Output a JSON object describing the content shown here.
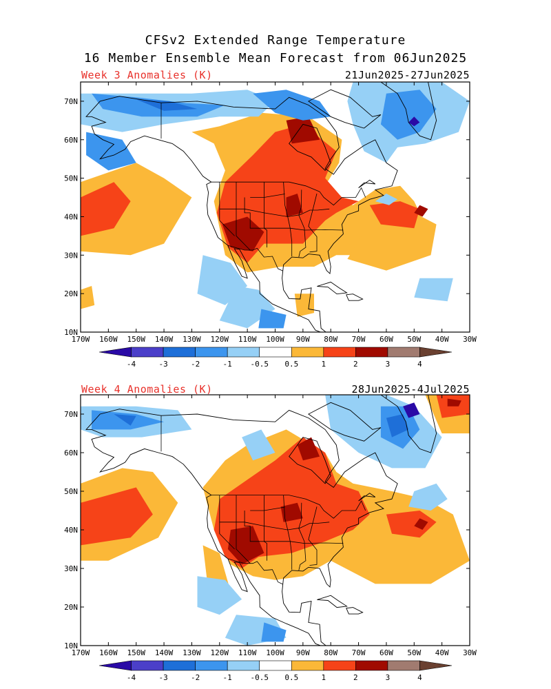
{
  "title_line1": "CFSv2 Extended Range Temperature",
  "title_line2": "16 Member Ensemble Mean Forecast from 06Jun2025",
  "panels": [
    {
      "label": "Week 3 Anomalies (K)",
      "dates": "21Jun2025-27Jun2025"
    },
    {
      "label": "Week 4 Anomalies (K)",
      "dates": "28Jun2025-4Jul2025"
    }
  ],
  "lon_labels": [
    "170W",
    "160W",
    "150W",
    "140W",
    "130W",
    "120W",
    "110W",
    "100W",
    "90W",
    "80W",
    "70W",
    "60W",
    "50W",
    "40W",
    "30W"
  ],
  "lat_labels": [
    "70N",
    "60N",
    "50N",
    "40N",
    "30N",
    "20N",
    "10N"
  ],
  "colorbar": {
    "labels": [
      "-4",
      "-3",
      "-2",
      "-1",
      "-0.5",
      "0.5",
      "1",
      "2",
      "3",
      "4"
    ],
    "colors": [
      "#2a0aa6",
      "#4b3fc9",
      "#1e6fd8",
      "#3c95ee",
      "#96d0f6",
      "#ffffff",
      "#fbb838",
      "#f64318",
      "#a00a00",
      "#a17b70",
      "#6a4030"
    ]
  }
}
